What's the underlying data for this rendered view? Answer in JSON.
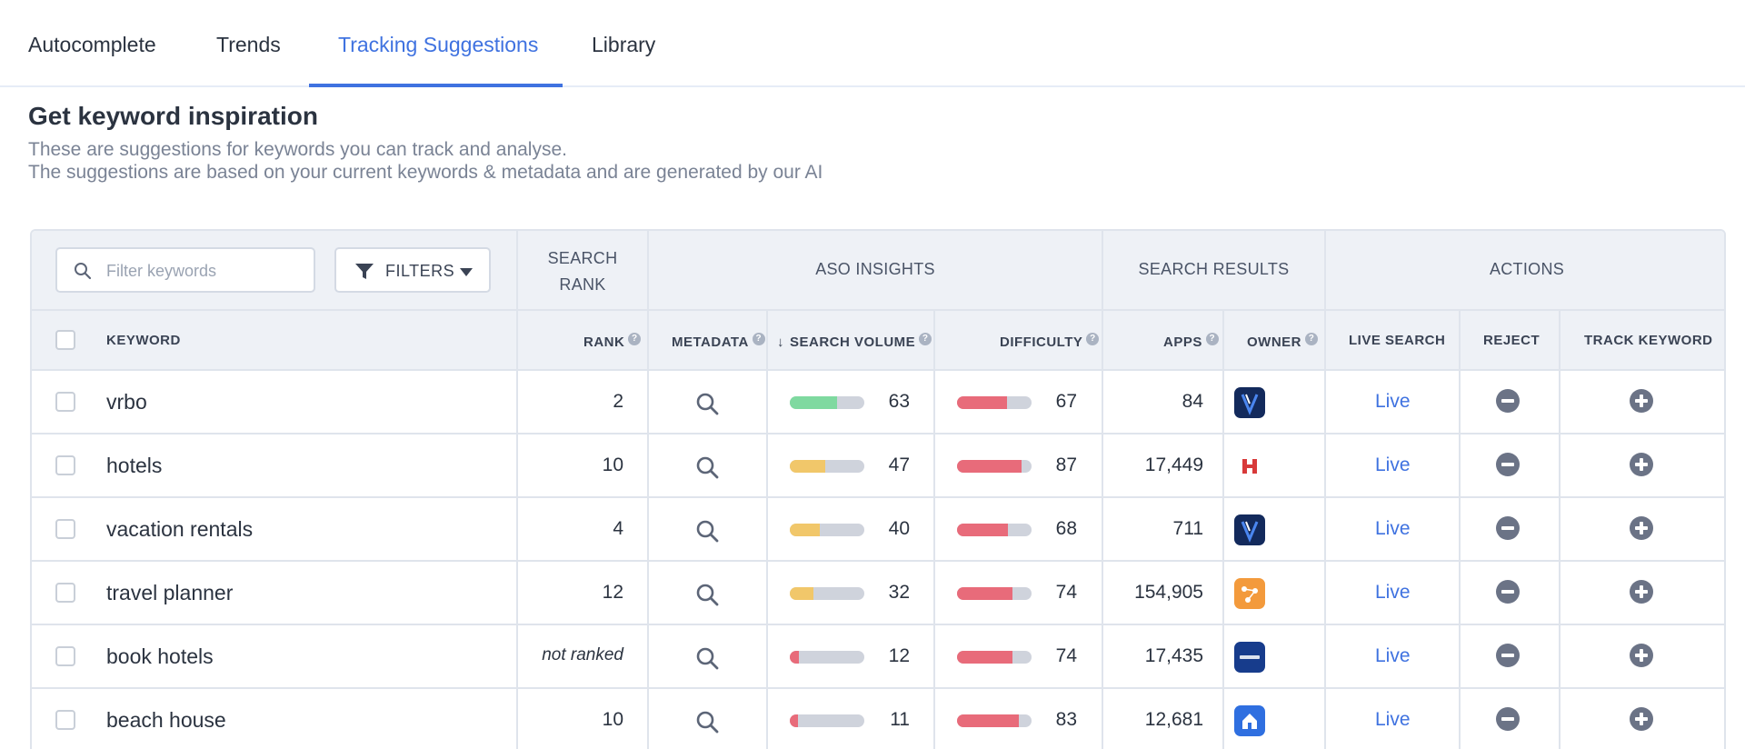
{
  "tabs": [
    {
      "label": "Autocomplete",
      "active": false
    },
    {
      "label": "Trends",
      "active": false
    },
    {
      "label": "Tracking Suggestions",
      "active": true
    },
    {
      "label": "Library",
      "active": false
    }
  ],
  "heading": {
    "title": "Get keyword inspiration",
    "line1": "These are suggestions for keywords you can track and analyse.",
    "line2": "The suggestions are based on your current keywords & metadata and are generated by our AI"
  },
  "toolbar": {
    "search_placeholder": "Filter keywords",
    "filters_label": "FILTERS"
  },
  "groups": {
    "search_rank_1": "SEARCH",
    "search_rank_2": "RANK",
    "aso_insights": "ASO INSIGHTS",
    "search_results": "SEARCH RESULTS",
    "actions": "ACTIONS"
  },
  "columns": {
    "keyword": "KEYWORD",
    "rank": "RANK",
    "metadata": "METADATA",
    "search_volume": "SEARCH VOLUME",
    "difficulty": "DIFFICULTY",
    "apps": "APPS",
    "owner": "OWNER",
    "live_search": "LIVE SEARCH",
    "reject": "REJECT",
    "track_keyword": "TRACK KEYWORD"
  },
  "colors": {
    "accent": "#3f72e0",
    "volume_high": "#7fd9a0",
    "volume_mid": "#f1c76a",
    "volume_low": "#e86b7a",
    "difficulty": "#e86b7a"
  },
  "rows": [
    {
      "keyword": "vrbo",
      "rank": "2",
      "volume": 63,
      "difficulty": 67,
      "apps": "84",
      "owner_icon": "vrbo-app-icon",
      "live": "Live"
    },
    {
      "keyword": "hotels",
      "rank": "10",
      "volume": 47,
      "difficulty": 87,
      "apps": "17,449",
      "owner_icon": "hotels-app-icon",
      "live": "Live"
    },
    {
      "keyword": "vacation rentals",
      "rank": "4",
      "volume": 40,
      "difficulty": 68,
      "apps": "711",
      "owner_icon": "vrbo-app-icon",
      "live": "Live"
    },
    {
      "keyword": "travel planner",
      "rank": "12",
      "volume": 32,
      "difficulty": 74,
      "apps": "154,905",
      "owner_icon": "travel-planner-app-icon",
      "live": "Live"
    },
    {
      "keyword": "book hotels",
      "rank": "not ranked",
      "volume": 12,
      "difficulty": 74,
      "apps": "17,435",
      "owner_icon": "booking-app-icon",
      "live": "Live"
    },
    {
      "keyword": "beach house",
      "rank": "10",
      "volume": 11,
      "difficulty": 83,
      "apps": "12,681",
      "owner_icon": "home-app-icon",
      "live": "Live"
    }
  ]
}
